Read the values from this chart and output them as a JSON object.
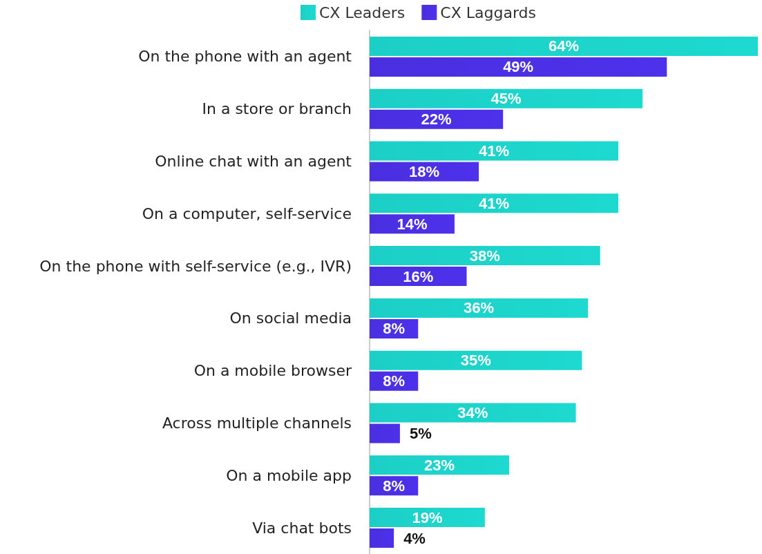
{
  "chart_data": {
    "type": "bar",
    "orientation": "horizontal",
    "categories": [
      "On the phone with an agent",
      "In a store or branch",
      "Online chat with an agent",
      "On a computer, self-service",
      "On the phone with self-service (e.g., IVR)",
      "On social media",
      "On a mobile browser",
      "Across multiple channels",
      "On a mobile app",
      "Via chat bots"
    ],
    "series": [
      {
        "name": "CX Leaders",
        "color": "#1ccfc6",
        "values": [
          64,
          45,
          41,
          41,
          38,
          36,
          35,
          34,
          23,
          19
        ],
        "value_labels": [
          "64%",
          "45%",
          "41%",
          "41%",
          "38%",
          "36%",
          "35%",
          "34%",
          "23%",
          "19%"
        ]
      },
      {
        "name": "CX Laggards",
        "color": "#4a2fe0",
        "values": [
          49,
          22,
          18,
          14,
          16,
          8,
          8,
          5,
          8,
          4
        ],
        "value_labels": [
          "49%",
          "22%",
          "18%",
          "14%",
          "16%",
          "8%",
          "8%",
          "5%",
          "8%",
          "4%"
        ]
      }
    ],
    "legend": "top"
  }
}
